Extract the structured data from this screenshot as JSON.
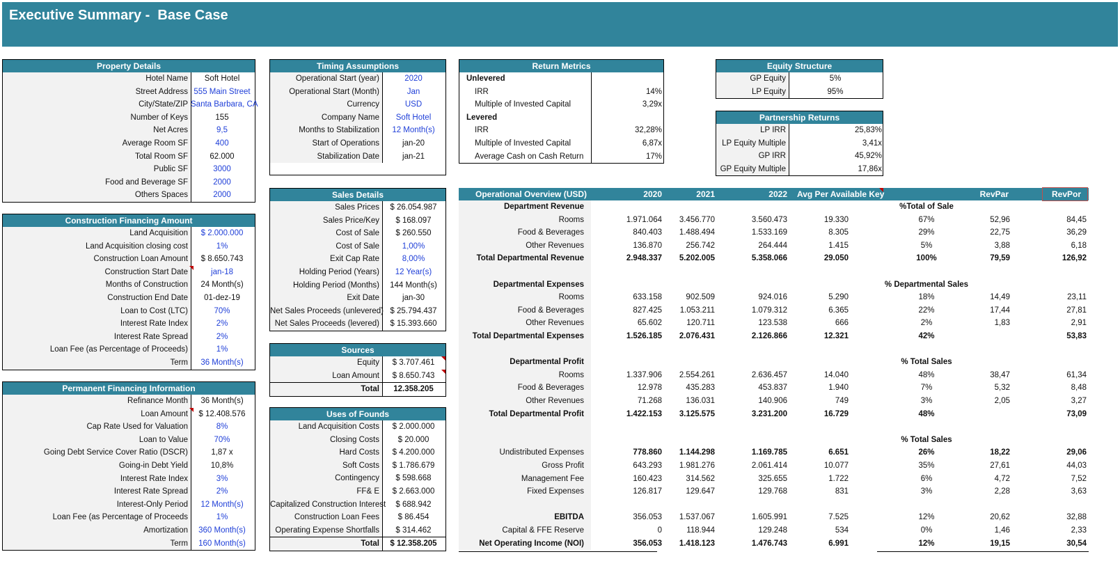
{
  "title": "Executive Summary -  Base Case",
  "property": {
    "header": "Property Details",
    "rows": [
      {
        "label": "Hotel Name",
        "value": "Soft Hotel",
        "blue": false
      },
      {
        "label": "Street Address",
        "value": "555 Main Street",
        "blue": true
      },
      {
        "label": "City/State/ZIP",
        "value": "Santa Barbara, CA",
        "blue": true
      },
      {
        "label": "Number of Keys",
        "value": "155",
        "blue": false
      },
      {
        "label": "Net Acres",
        "value": "9,5",
        "blue": true
      },
      {
        "label": "Average Room SF",
        "value": "400",
        "blue": true
      },
      {
        "label": "Total Room SF",
        "value": "62.000",
        "blue": false
      },
      {
        "label": "Public SF",
        "value": "3000",
        "blue": true
      },
      {
        "label": "Food and Beverage SF",
        "value": "2000",
        "blue": true
      },
      {
        "label": "Others Spaces",
        "value": "2000",
        "blue": true
      }
    ]
  },
  "construction": {
    "header": "Construction Financing Amount",
    "rows": [
      {
        "label": "Land Acquisition",
        "value": "$ 2.000.000",
        "blue": true
      },
      {
        "label": "Land Acquisition closing cost",
        "value": "1%",
        "blue": true
      },
      {
        "label": "Construction Loan Amount",
        "value": "$ 8.650.743",
        "blue": false
      },
      {
        "label": "Construction Start Date",
        "value": "jan-18",
        "blue": true
      },
      {
        "label": "Months of Construction",
        "value": "24 Month(s)",
        "blue": false
      },
      {
        "label": "Construction End Date",
        "value": "01-dez-19",
        "blue": false
      },
      {
        "label": "Loan to Cost (LTC)",
        "value": "70%",
        "blue": true
      },
      {
        "label": "Interest Rate Index",
        "value": "2%",
        "blue": true
      },
      {
        "label": "Interest Rate Spread",
        "value": "2%",
        "blue": true
      },
      {
        "label": "Loan Fee (as Percentage of Proceeds)",
        "value": "1%",
        "blue": true
      },
      {
        "label": "Term",
        "value": "36 Month(s)",
        "blue": true
      }
    ]
  },
  "permanent": {
    "header": "Permanent Financing Information",
    "rows": [
      {
        "label": "Refinance Month",
        "value": "36 Month(s)",
        "blue": false
      },
      {
        "label": "Loan Amount",
        "value": "$ 12.408.576",
        "blue": false
      },
      {
        "label": "Cap Rate Used for Valuation",
        "value": "8%",
        "blue": true
      },
      {
        "label": "Loan to Value",
        "value": "70%",
        "blue": true
      },
      {
        "label": "Going Debt Service Cover Ratio (DSCR)",
        "value": "1,87 x",
        "blue": false
      },
      {
        "label": "Going-in Debt Yield",
        "value": "10,8%",
        "blue": false
      },
      {
        "label": "Interest Rate Index",
        "value": "3%",
        "blue": true
      },
      {
        "label": "Interest Rate Spread",
        "value": "2%",
        "blue": true
      },
      {
        "label": "Interest-Only Period",
        "value": "12 Month(s)",
        "blue": true
      },
      {
        "label": "Loan Fee (as Percentage of Proceeds",
        "value": "1%",
        "blue": true
      },
      {
        "label": "Amortization",
        "value": "360 Month(s)",
        "blue": true
      },
      {
        "label": "Term",
        "value": "160 Month(s)",
        "blue": true
      }
    ]
  },
  "timing": {
    "header": "Timing Assumptions",
    "rows": [
      {
        "label": "Operational Start (year)",
        "value": "2020",
        "blue": true
      },
      {
        "label": "Operational Start (Month)",
        "value": "Jan",
        "blue": true
      },
      {
        "label": "Currency",
        "value": "USD",
        "blue": true
      },
      {
        "label": "Company Name",
        "value": "Soft Hotel",
        "blue": true
      },
      {
        "label": "Months to Stabilization",
        "value": "12 Month(s)",
        "blue": true
      },
      {
        "label": "Start of Operations",
        "value": "jan-20",
        "blue": false
      },
      {
        "label": "Stabilization  Date",
        "value": "jan-21",
        "blue": false
      }
    ]
  },
  "sales": {
    "header": "Sales Details",
    "rows": [
      {
        "label": "Sales Prices",
        "value": "$ 26.054.987",
        "blue": false
      },
      {
        "label": "Sales Price/Key",
        "value": "$ 168.097",
        "blue": false
      },
      {
        "label": "Cost of Sale",
        "value": "$ 260.550",
        "blue": false
      },
      {
        "label": "Cost of Sale",
        "value": "1,00%",
        "blue": true
      },
      {
        "label": "Exit Cap Rate",
        "value": "8,00%",
        "blue": true
      },
      {
        "label": "Holding Period (Years)",
        "value": "12 Year(s)",
        "blue": true
      },
      {
        "label": "Holding Period (Months)",
        "value": "144 Month(s)",
        "blue": false
      },
      {
        "label": "Exit Date",
        "value": "jan-30",
        "blue": false
      },
      {
        "label": "Net Sales Proceeds (unlevered)",
        "value": "$ 25.794.437",
        "blue": false
      },
      {
        "label": "Net Sales Proceeds (levered)",
        "value": "$ 15.393.660",
        "blue": false
      }
    ]
  },
  "sources": {
    "header": "Sources",
    "rows": [
      {
        "label": "Equity",
        "value": "$ 3.707.461",
        "blue": false
      },
      {
        "label": "Loan Amount",
        "value": "$ 8.650.743",
        "blue": false
      }
    ],
    "total_label": "Total",
    "total_value": "12.358.205"
  },
  "uses": {
    "header": "Uses of Founds",
    "rows": [
      {
        "label": "Land Acquisition Costs",
        "value": "$ 2.000.000"
      },
      {
        "label": "Closing Costs",
        "value": "$ 20.000"
      },
      {
        "label": "Hard Costs",
        "value": "$ 4.200.000"
      },
      {
        "label": "Soft Costs",
        "value": "$ 1.786.679"
      },
      {
        "label": "Contingency",
        "value": "$ 598.668"
      },
      {
        "label": "FF& E",
        "value": "$ 2.663.000"
      },
      {
        "label": "Capitalized Construction Interest",
        "value": "$ 688.942"
      },
      {
        "label": "Construction Loan Fees",
        "value": "$ 86.454"
      },
      {
        "label": "Operating Expense Shortfalls",
        "value": "$ 314.462"
      }
    ],
    "total_label": "Total",
    "total_value": "$ 12.358.205"
  },
  "returns": {
    "header": "Return Metrics",
    "rows": [
      {
        "label": "Unlevered",
        "value": "",
        "section": true
      },
      {
        "label": "IRR",
        "value": "14%",
        "section": false
      },
      {
        "label": "Multiple of Invested Capital",
        "value": "3,29x",
        "section": false
      },
      {
        "label": "Levered",
        "value": "",
        "section": true
      },
      {
        "label": "IRR",
        "value": "32,28%",
        "section": false
      },
      {
        "label": "Multiple of Invested Capital",
        "value": "6,87x",
        "section": false
      },
      {
        "label": "Average Cash on Cash Return",
        "value": "17%",
        "section": false
      }
    ]
  },
  "equity": {
    "header": "Equity Structure",
    "rows": [
      {
        "label": "GP Equity",
        "value": "5%"
      },
      {
        "label": "LP Equity",
        "value": "95%"
      }
    ]
  },
  "partnership": {
    "header": "Partnership Returns",
    "rows": [
      {
        "label": "LP IRR",
        "value": "25,83%"
      },
      {
        "label": "LP Equity Multiple",
        "value": "3,41x"
      },
      {
        "label": "GP  IRR",
        "value": "45,92%"
      },
      {
        "label": "GP Equity Multiple",
        "value": "17,86x"
      }
    ]
  },
  "ops": {
    "header": {
      "title": "Operational Overview (USD)",
      "y1": "2020",
      "y2": "2021",
      "y3": "2022",
      "avg": "Avg Per  Available Key",
      "revpar": "RevPar",
      "revpor": "RevPor"
    },
    "rows": [
      {
        "label": "Department Revenue",
        "type": "section",
        "pct": "%Total of Sale"
      },
      {
        "label": "Rooms",
        "v1": "1.971.064",
        "v2": "3.456.770",
        "v3": "3.560.473",
        "avg": "19.330",
        "pct": "67%",
        "revpar": "52,96",
        "revpor": "84,45"
      },
      {
        "label": "Food & Beverages",
        "v1": "840.403",
        "v2": "1.488.494",
        "v3": "1.533.169",
        "avg": "8.305",
        "pct": "29%",
        "revpar": "22,75",
        "revpor": "36,29"
      },
      {
        "label": "Other Revenues",
        "v1": "136.870",
        "v2": "256.742",
        "v3": "264.444",
        "avg": "1.415",
        "pct": "5%",
        "revpar": "3,88",
        "revpor": "6,18"
      },
      {
        "label": "Total Departmental Revenue",
        "type": "total",
        "v1": "2.948.337",
        "v2": "5.202.005",
        "v3": "5.358.066",
        "avg": "29.050",
        "pct": "100%",
        "revpar": "79,59",
        "revpor": "126,92"
      },
      {
        "label": "",
        "type": "blank"
      },
      {
        "label": "Departmental Expenses",
        "type": "section",
        "pct": "% Departmental Sales"
      },
      {
        "label": "Rooms",
        "v1": "633.158",
        "v2": "902.509",
        "v3": "924.016",
        "avg": "5.290",
        "pct": "18%",
        "revpar": "14,49",
        "revpor": "23,11"
      },
      {
        "label": "Food & Beverages",
        "v1": "827.425",
        "v2": "1.053.211",
        "v3": "1.079.312",
        "avg": "6.365",
        "pct": "22%",
        "revpar": "17,44",
        "revpor": "27,81"
      },
      {
        "label": "Other Revenues",
        "v1": "65.602",
        "v2": "120.711",
        "v3": "123.538",
        "avg": "666",
        "pct": "2%",
        "revpar": "1,83",
        "revpor": "2,91"
      },
      {
        "label": "Total Departmental Expenses",
        "type": "total",
        "v1": "1.526.185",
        "v2": "2.076.431",
        "v3": "2.126.866",
        "avg": "12.321",
        "pct": "42%",
        "revpar": "",
        "revpor": "53,83"
      },
      {
        "label": "",
        "type": "blank"
      },
      {
        "label": "Departmental Profit",
        "type": "section",
        "pct": "% Total Sales"
      },
      {
        "label": "Rooms",
        "v1": "1.337.906",
        "v2": "2.554.261",
        "v3": "2.636.457",
        "avg": "14.040",
        "pct": "48%",
        "revpar": "38,47",
        "revpor": "61,34"
      },
      {
        "label": "Food & Beverages",
        "v1": "12.978",
        "v2": "435.283",
        "v3": "453.837",
        "avg": "1.940",
        "pct": "7%",
        "revpar": "5,32",
        "revpor": "8,48"
      },
      {
        "label": "Other Revenues",
        "v1": "71.268",
        "v2": "136.031",
        "v3": "140.906",
        "avg": "749",
        "pct": "3%",
        "revpar": "2,05",
        "revpor": "3,27"
      },
      {
        "label": "Total Departmental Profit",
        "type": "total",
        "v1": "1.422.153",
        "v2": "3.125.575",
        "v3": "3.231.200",
        "avg": "16.729",
        "pct": "48%",
        "revpar": "",
        "revpor": "73,09"
      },
      {
        "label": "",
        "type": "blank"
      },
      {
        "label": "",
        "type": "section",
        "pct": "% Total Sales"
      },
      {
        "label": "Undistributed Expenses",
        "type": "boldvals",
        "v1": "778.860",
        "v2": "1.144.298",
        "v3": "1.169.785",
        "avg": "6.651",
        "pct": "26%",
        "revpar": "18,22",
        "revpor": "29,06"
      },
      {
        "label": "Gross Profit",
        "v1": "643.293",
        "v2": "1.981.276",
        "v3": "2.061.414",
        "avg": "10.077",
        "pct": "35%",
        "revpar": "27,61",
        "revpor": "44,03"
      },
      {
        "label": "Management Fee",
        "v1": "160.423",
        "v2": "314.562",
        "v3": "325.655",
        "avg": "1.722",
        "pct": "6%",
        "revpar": "4,72",
        "revpor": "7,52"
      },
      {
        "label": "Fixed Expenses",
        "v1": "126.817",
        "v2": "129.647",
        "v3": "129.768",
        "avg": "831",
        "pct": "3%",
        "revpar": "2,28",
        "revpor": "3,63"
      },
      {
        "label": "",
        "type": "blank"
      },
      {
        "label": "EBITDA",
        "type": "boldlabel",
        "v1": "356.053",
        "v2": "1.537.067",
        "v3": "1.605.991",
        "avg": "7.525",
        "pct": "12%",
        "revpar": "20,62",
        "revpor": "32,88"
      },
      {
        "label": "Capital & FFE Reserve",
        "v1": "0",
        "v2": "118.944",
        "v3": "129.248",
        "avg": "534",
        "pct": "0%",
        "revpar": "1,46",
        "revpor": "2,33"
      },
      {
        "label": "Net Operating Income (NOI)",
        "type": "total",
        "v1": "356.053",
        "v2": "1.418.123",
        "v3": "1.476.743",
        "avg": "6.991",
        "pct": "12%",
        "revpar": "19,15",
        "revpor": "30,54"
      }
    ]
  }
}
